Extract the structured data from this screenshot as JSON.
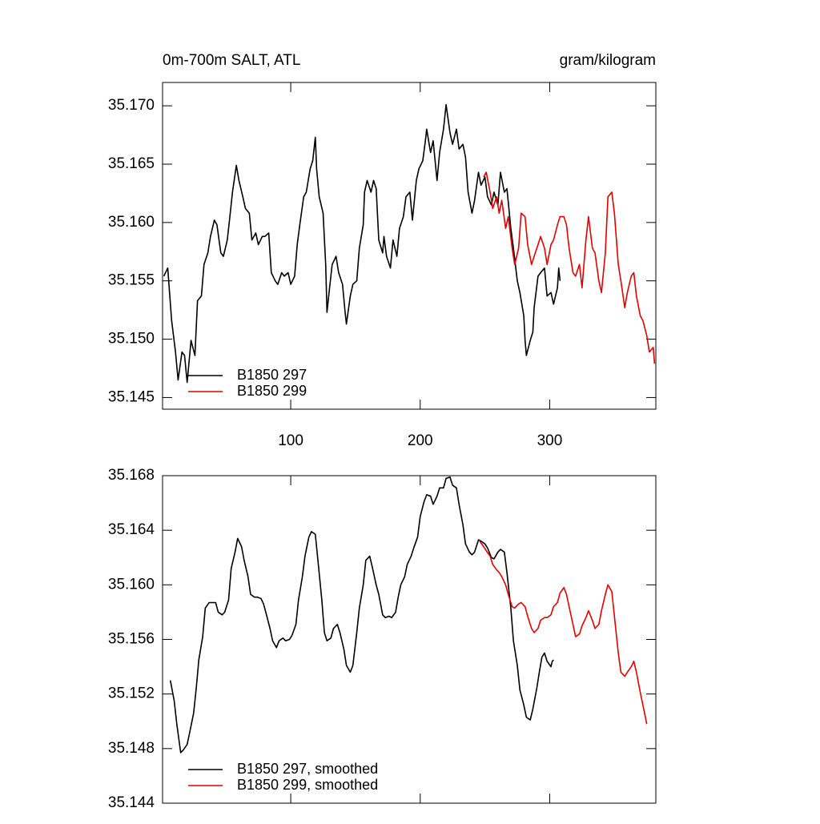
{
  "chart_data": [
    {
      "type": "line",
      "title": "0m-700m SALT, ATL",
      "units": "gram/kilogram",
      "xlim": [
        1,
        382
      ],
      "xticks": [
        100,
        200,
        300
      ],
      "show_xtick_labels": true,
      "ylim": [
        35.144,
        35.172
      ],
      "yticks": [
        {
          "value": 35.17,
          "label": "35.170"
        },
        35.165,
        {
          "value": 35.16,
          "label": "35.160"
        },
        35.155,
        {
          "value": 35.15,
          "label": "35.150"
        },
        35.145
      ],
      "legend": "lower left",
      "series": [
        {
          "name": "B1850 297",
          "color": "#000000",
          "x": [
            2,
            5,
            8,
            11,
            13,
            16,
            18,
            20,
            23,
            26,
            28,
            31,
            33,
            36,
            38,
            41,
            43,
            46,
            48,
            51,
            53,
            55,
            58,
            60,
            63,
            65,
            68,
            70,
            73,
            75,
            78,
            80,
            83,
            85,
            88,
            90,
            93,
            95,
            98,
            100,
            103,
            105,
            107,
            110,
            112,
            115,
            117,
            119,
            120,
            122,
            125,
            127,
            128,
            130,
            132,
            135,
            137,
            140,
            142,
            143,
            146,
            148,
            151,
            153,
            156,
            157,
            159,
            162,
            164,
            166,
            168,
            171,
            172,
            174,
            177,
            179,
            182,
            184,
            187,
            189,
            192,
            194,
            197,
            199,
            202,
            204,
            205,
            208,
            210,
            213,
            215,
            218,
            220,
            223,
            225,
            228,
            230,
            233,
            235,
            237,
            240,
            242,
            245,
            247,
            250,
            252,
            255,
            257,
            260,
            262,
            265,
            267,
            270,
            272,
            275,
            277,
            280,
            281,
            282,
            285,
            287,
            288,
            291,
            293,
            296,
            298,
            301,
            303,
            306,
            307,
            308
          ],
          "values": [
            35.1554,
            35.1561,
            35.1516,
            35.1489,
            35.1465,
            35.1489,
            35.1486,
            35.1463,
            35.1499,
            35.1486,
            35.1533,
            35.1537,
            35.1564,
            35.1574,
            35.1588,
            35.1602,
            35.1598,
            35.1574,
            35.1571,
            35.1585,
            35.1605,
            35.1626,
            35.1649,
            35.1636,
            35.1622,
            35.1612,
            35.1608,
            35.1585,
            35.1591,
            35.1581,
            35.1588,
            35.1588,
            35.1591,
            35.1557,
            35.155,
            35.1547,
            35.1557,
            35.1554,
            35.1557,
            35.1547,
            35.1554,
            35.1581,
            35.1598,
            35.1622,
            35.1626,
            35.1646,
            35.1653,
            35.1673,
            35.1646,
            35.1622,
            35.1608,
            35.1564,
            35.1523,
            35.1544,
            35.1564,
            35.1571,
            35.1557,
            35.1547,
            35.1523,
            35.1513,
            35.1537,
            35.1547,
            35.155,
            35.1578,
            35.1598,
            35.1626,
            35.1636,
            35.1626,
            35.1636,
            35.1629,
            35.1585,
            35.1574,
            35.1588,
            35.1571,
            35.1561,
            35.1585,
            35.1571,
            35.1595,
            35.1605,
            35.1622,
            35.1626,
            35.1602,
            35.1636,
            35.1646,
            35.1653,
            35.167,
            35.168,
            35.166,
            35.167,
            35.1636,
            35.166,
            35.168,
            35.1701,
            35.1677,
            35.1667,
            35.168,
            35.1663,
            35.1667,
            35.1656,
            35.1626,
            35.1608,
            35.1619,
            35.1643,
            35.1632,
            35.1639,
            35.1622,
            35.1615,
            35.1626,
            35.1615,
            35.1643,
            35.1626,
            35.1629,
            35.1595,
            35.1578,
            35.155,
            35.154,
            35.152,
            35.1499,
            35.1486,
            35.1499,
            35.1506,
            35.1527,
            35.1554,
            35.1557,
            35.1561,
            35.1537,
            35.154,
            35.153,
            35.1544,
            35.1561,
            35.155
          ]
        },
        {
          "name": "B1850 299",
          "color": "#e00000",
          "x": [
            249,
            251,
            254,
            256,
            259,
            261,
            263,
            266,
            268,
            271,
            273,
            276,
            278,
            281,
            283,
            286,
            288,
            291,
            293,
            296,
            298,
            301,
            303,
            306,
            308,
            311,
            313,
            315,
            318,
            320,
            323,
            325,
            328,
            330,
            333,
            335,
            338,
            340,
            343,
            345,
            348,
            350,
            353,
            355,
            358,
            360,
            363,
            365,
            367,
            370,
            372,
            375,
            377,
            380,
            381
          ],
          "values": [
            35.1639,
            35.1643,
            35.1626,
            35.1612,
            35.1622,
            35.1608,
            35.1619,
            35.1595,
            35.1605,
            35.1578,
            35.1564,
            35.1578,
            35.1608,
            35.1605,
            35.1581,
            35.1564,
            35.1571,
            35.1581,
            35.1588,
            35.1578,
            35.1564,
            35.1581,
            35.1585,
            35.1598,
            35.1605,
            35.1605,
            35.1598,
            35.1578,
            35.1557,
            35.1554,
            35.1564,
            35.1544,
            35.1585,
            35.1605,
            35.1578,
            35.1574,
            35.155,
            35.154,
            35.1574,
            35.1622,
            35.1626,
            35.1608,
            35.1564,
            35.155,
            35.1527,
            35.154,
            35.1554,
            35.1557,
            35.1537,
            35.152,
            35.1516,
            35.1503,
            35.1489,
            35.1493,
            35.1479
          ]
        }
      ]
    },
    {
      "type": "line",
      "xlim": [
        1,
        382
      ],
      "xticks": [
        100,
        200,
        300
      ],
      "show_xtick_labels": false,
      "ylim": [
        35.144,
        35.168
      ],
      "yticks": [
        35.168,
        35.164,
        {
          "value": 35.16,
          "label": "35.160"
        },
        35.156,
        35.152,
        35.148,
        35.144
      ],
      "legend": "lower left",
      "series": [
        {
          "name": "B1850 297, smoothed",
          "color": "#000000",
          "x": [
            7,
            10,
            12,
            15,
            17,
            20,
            22,
            25,
            27,
            29,
            32,
            34,
            37,
            39,
            42,
            44,
            47,
            49,
            52,
            54,
            57,
            59,
            62,
            64,
            67,
            69,
            72,
            74,
            77,
            79,
            81,
            84,
            86,
            89,
            91,
            94,
            96,
            99,
            101,
            104,
            106,
            109,
            111,
            114,
            116,
            119,
            121,
            124,
            126,
            128,
            131,
            133,
            136,
            138,
            141,
            143,
            146,
            148,
            151,
            153,
            156,
            158,
            161,
            163,
            166,
            168,
            171,
            173,
            176,
            178,
            181,
            183,
            185,
            188,
            190,
            193,
            195,
            198,
            200,
            203,
            205,
            208,
            210,
            213,
            215,
            218,
            220,
            223,
            225,
            228,
            230,
            233,
            235,
            238,
            240,
            242,
            245,
            247,
            250,
            252,
            255,
            257,
            260,
            262,
            265,
            267,
            270,
            272,
            275,
            277,
            280,
            282,
            285,
            287,
            290,
            292,
            294,
            296,
            298,
            301,
            302,
            303
          ],
          "values": [
            35.153,
            35.1515,
            35.1498,
            35.1477,
            35.1479,
            35.1483,
            35.1492,
            35.1506,
            35.1524,
            35.1545,
            35.1562,
            35.1583,
            35.1587,
            35.1587,
            35.1587,
            35.158,
            35.1578,
            35.158,
            35.1589,
            35.1612,
            35.1624,
            35.1634,
            35.1628,
            35.1618,
            35.1606,
            35.1593,
            35.1591,
            35.1591,
            35.159,
            35.1586,
            35.1579,
            35.1568,
            35.1559,
            35.1554,
            35.1559,
            35.1561,
            35.1559,
            35.156,
            35.1563,
            35.1571,
            35.1589,
            35.1606,
            35.1621,
            35.1635,
            35.1639,
            35.1637,
            35.1618,
            35.1589,
            35.1565,
            35.1559,
            35.1561,
            35.1568,
            35.1571,
            35.1565,
            35.1553,
            35.1541,
            35.1536,
            35.1541,
            35.1565,
            35.1583,
            35.16,
            35.1618,
            35.1621,
            35.1613,
            35.16,
            35.1593,
            35.1578,
            35.1576,
            35.1577,
            35.1576,
            35.158,
            35.1591,
            35.16,
            35.1606,
            35.1615,
            35.1621,
            35.1627,
            35.1635,
            35.165,
            35.1661,
            35.1666,
            35.1665,
            35.1659,
            35.1665,
            35.1671,
            35.1671,
            35.1678,
            35.1679,
            35.1673,
            35.1671,
            35.1659,
            35.1644,
            35.163,
            35.1624,
            35.1622,
            35.1624,
            35.1633,
            35.1632,
            35.163,
            35.1627,
            35.162,
            35.1619,
            35.1624,
            35.1626,
            35.1624,
            35.1609,
            35.1583,
            35.1559,
            35.1541,
            35.1523,
            35.1512,
            35.1503,
            35.1501,
            35.1509,
            35.1524,
            35.1536,
            35.1547,
            35.155,
            35.1544,
            35.154,
            35.1544,
            35.1545
          ]
        },
        {
          "name": "B1850 299, smoothed",
          "color": "#e00000",
          "x": [
            246,
            249,
            251,
            254,
            256,
            259,
            261,
            263,
            266,
            268,
            271,
            273,
            276,
            278,
            281,
            283,
            286,
            288,
            291,
            293,
            296,
            298,
            301,
            303,
            306,
            308,
            311,
            313,
            315,
            318,
            320,
            323,
            325,
            328,
            330,
            333,
            335,
            338,
            340,
            343,
            345,
            348,
            350,
            353,
            355,
            358,
            360,
            363,
            365,
            367,
            370,
            372,
            375
          ],
          "values": [
            35.1632,
            35.1628,
            35.1625,
            35.1621,
            35.1615,
            35.1611,
            35.1609,
            35.1606,
            35.16,
            35.1593,
            35.1584,
            35.1583,
            35.1586,
            35.1587,
            35.1584,
            35.1577,
            35.1568,
            35.1565,
            35.1568,
            35.1574,
            35.1576,
            35.1576,
            35.1578,
            35.1584,
            35.1587,
            35.1594,
            35.1598,
            35.1593,
            35.1584,
            35.1571,
            35.1562,
            35.1564,
            35.157,
            35.1576,
            35.1581,
            35.1574,
            35.1568,
            35.1571,
            35.1581,
            35.1593,
            35.16,
            35.1595,
            35.1577,
            35.155,
            35.1536,
            35.1533,
            35.1536,
            35.154,
            35.1544,
            35.1536,
            35.1521,
            35.1512,
            35.1498
          ]
        }
      ]
    }
  ]
}
